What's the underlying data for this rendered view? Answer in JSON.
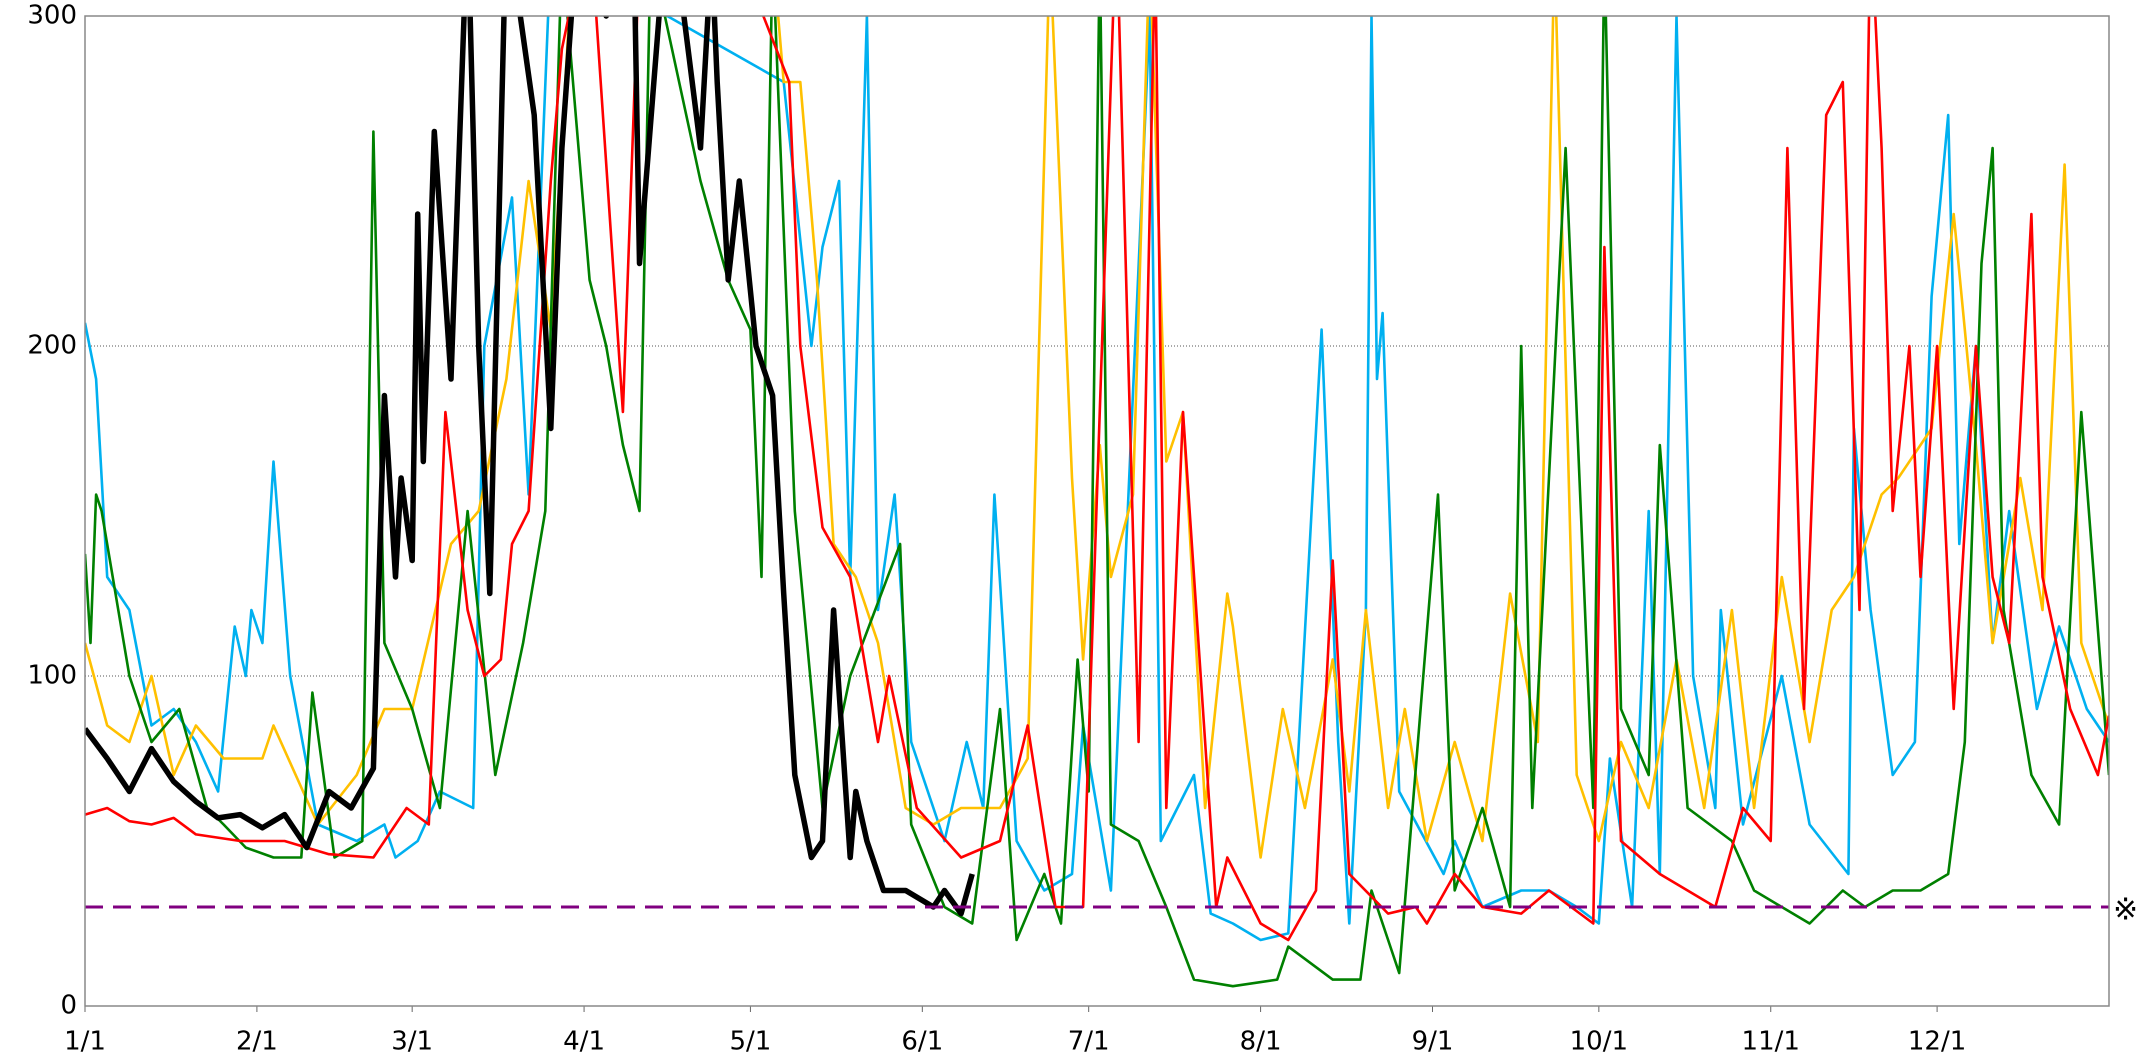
{
  "chart_data": {
    "type": "line",
    "xlim": [
      0,
      365
    ],
    "ylim": [
      0,
      300
    ],
    "xticks": [
      {
        "value": 0,
        "label": "1/1"
      },
      {
        "value": 31,
        "label": "2/1"
      },
      {
        "value": 59,
        "label": "3/1"
      },
      {
        "value": 90,
        "label": "4/1"
      },
      {
        "value": 120,
        "label": "5/1"
      },
      {
        "value": 151,
        "label": "6/1"
      },
      {
        "value": 181,
        "label": "7/1"
      },
      {
        "value": 212,
        "label": "8/1"
      },
      {
        "value": 243,
        "label": "9/1"
      },
      {
        "value": 273,
        "label": "10/1"
      },
      {
        "value": 304,
        "label": "11/1"
      },
      {
        "value": 334,
        "label": "12/1"
      }
    ],
    "yticks": [
      0,
      100,
      200,
      300
    ],
    "grid": true,
    "reference_line": {
      "value": 30,
      "label": "※",
      "color": "#800080"
    },
    "series": [
      {
        "color": "#00b0f0",
        "x": [
          0,
          2,
          4,
          8,
          12,
          16,
          20,
          24,
          27,
          29,
          30,
          32,
          34,
          37,
          42,
          49,
          54,
          56,
          60,
          64,
          70,
          72,
          77,
          80,
          84,
          126,
          131,
          133,
          136,
          138,
          141,
          143,
          146,
          149,
          155,
          159,
          162,
          164,
          168,
          173,
          178,
          180,
          185,
          192,
          194,
          200,
          203,
          207,
          212,
          217,
          223,
          226,
          228,
          231,
          232,
          233,
          234,
          237,
          245,
          247,
          252,
          259,
          264,
          269,
          273,
          275,
          279,
          282,
          284,
          287,
          290,
          294,
          295,
          299,
          306,
          311,
          318,
          319,
          322,
          326,
          330,
          333,
          336,
          338,
          341,
          344,
          347,
          352,
          356,
          361,
          365
        ],
        "values": [
          207,
          190,
          130,
          120,
          85,
          90,
          80,
          65,
          115,
          100,
          120,
          110,
          165,
          100,
          55,
          50,
          55,
          45,
          50,
          65,
          60,
          200,
          245,
          155,
          320,
          280,
          200,
          230,
          250,
          130,
          300,
          120,
          155,
          80,
          50,
          80,
          60,
          155,
          50,
          35,
          40,
          85,
          35,
          300,
          50,
          70,
          28,
          25,
          20,
          22,
          205,
          80,
          25,
          120,
          300,
          190,
          210,
          65,
          40,
          50,
          30,
          35,
          35,
          30,
          25,
          75,
          30,
          150,
          40,
          300,
          100,
          60,
          120,
          55,
          100,
          55,
          40,
          175,
          120,
          70,
          80,
          215,
          270,
          140,
          200,
          110,
          150,
          90,
          115,
          90,
          80
        ]
      },
      {
        "color": "#ffc000",
        "x": [
          0,
          4,
          8,
          12,
          16,
          20,
          25,
          32,
          34,
          42,
          49,
          54,
          59,
          66,
          71,
          76,
          80,
          84,
          88,
          124,
          126,
          129,
          132,
          135,
          139,
          143,
          148,
          153,
          158,
          165,
          170,
          174,
          178,
          180,
          183,
          185,
          189,
          192,
          195,
          198,
          202,
          206,
          207,
          212,
          216,
          220,
          225,
          228,
          231,
          235,
          238,
          242,
          247,
          252,
          257,
          262,
          265,
          269,
          273,
          277,
          282,
          287,
          292,
          297,
          301,
          306,
          311,
          315,
          319,
          324,
          327,
          333,
          337,
          341,
          344,
          349,
          353,
          357,
          360,
          365
        ],
        "values": [
          110,
          85,
          80,
          100,
          70,
          85,
          75,
          75,
          85,
          55,
          70,
          90,
          90,
          140,
          150,
          190,
          250,
          205,
          320,
          320,
          280,
          280,
          220,
          140,
          130,
          110,
          60,
          55,
          60,
          60,
          75,
          320,
          160,
          105,
          170,
          130,
          155,
          320,
          165,
          180,
          60,
          125,
          115,
          45,
          90,
          60,
          105,
          65,
          120,
          60,
          90,
          50,
          80,
          50,
          125,
          80,
          320,
          70,
          50,
          80,
          60,
          105,
          60,
          120,
          60,
          130,
          80,
          120,
          130,
          155,
          160,
          175,
          240,
          170,
          110,
          160,
          120,
          255,
          110,
          85
        ]
      },
      {
        "color": "#008000",
        "x": [
          0,
          1,
          2,
          3,
          8,
          12,
          17,
          22,
          25,
          29,
          34,
          39,
          41,
          45,
          50,
          52,
          54,
          59,
          64,
          69,
          74,
          79,
          83,
          86,
          91,
          94,
          97,
          100,
          102,
          111,
          116,
          120,
          122,
          124,
          128,
          133,
          138,
          147,
          149,
          155,
          160,
          165,
          168,
          173,
          176,
          179,
          181,
          183,
          185,
          190,
          195,
          200,
          207,
          215,
          217,
          225,
          230,
          232,
          237,
          244,
          247,
          252,
          257,
          259,
          261,
          267,
          272,
          274,
          277,
          282,
          284,
          289,
          297,
          301,
          306,
          311,
          317,
          321,
          326,
          331,
          336,
          339,
          342,
          344,
          346,
          351,
          356,
          360,
          365
        ],
        "values": [
          137,
          110,
          155,
          150,
          100,
          80,
          90,
          60,
          55,
          48,
          45,
          45,
          95,
          45,
          50,
          265,
          110,
          90,
          60,
          150,
          70,
          110,
          150,
          320,
          220,
          200,
          170,
          150,
          320,
          250,
          220,
          205,
          130,
          320,
          150,
          60,
          100,
          140,
          55,
          30,
          25,
          90,
          20,
          40,
          25,
          105,
          65,
          320,
          55,
          50,
          30,
          8,
          6,
          8,
          18,
          8,
          8,
          35,
          10,
          155,
          35,
          60,
          30,
          200,
          60,
          260,
          60,
          320,
          90,
          70,
          170,
          60,
          50,
          35,
          30,
          25,
          35,
          30,
          35,
          35,
          40,
          80,
          225,
          260,
          120,
          70,
          55,
          180,
          70
        ]
      },
      {
        "color": "#ff0000",
        "x": [
          0,
          4,
          8,
          12,
          16,
          20,
          28,
          36,
          44,
          52,
          58,
          62,
          65,
          69,
          72,
          75,
          77,
          80,
          84,
          86,
          91,
          97,
          100,
          120,
          127,
          129,
          133,
          138,
          143,
          145,
          150,
          158,
          165,
          170,
          175,
          180,
          186,
          190,
          193,
          195,
          198,
          204,
          206,
          212,
          217,
          222,
          225,
          228,
          235,
          240,
          242,
          247,
          252,
          259,
          264,
          272,
          274,
          277,
          284,
          289,
          294,
          299,
          304,
          307,
          310,
          314,
          317,
          320,
          322,
          324,
          326,
          329,
          331,
          334,
          337,
          341,
          344,
          347,
          351,
          353,
          358,
          363,
          365
        ],
        "values": [
          58,
          60,
          56,
          55,
          57,
          52,
          50,
          50,
          46,
          45,
          60,
          55,
          180,
          120,
          100,
          105,
          140,
          150,
          250,
          290,
          330,
          180,
          320,
          310,
          280,
          200,
          145,
          130,
          80,
          100,
          60,
          45,
          50,
          85,
          30,
          30,
          330,
          80,
          320,
          60,
          180,
          30,
          45,
          25,
          20,
          35,
          135,
          40,
          28,
          30,
          25,
          40,
          30,
          28,
          35,
          25,
          230,
          50,
          40,
          35,
          30,
          60,
          50,
          260,
          90,
          270,
          280,
          120,
          330,
          260,
          150,
          200,
          130,
          200,
          90,
          200,
          130,
          110,
          240,
          130,
          90,
          70,
          88
        ]
      },
      {
        "color": "#000000",
        "bold": true,
        "x": [
          0,
          4,
          8,
          12,
          16,
          20,
          24,
          28,
          32,
          36,
          40,
          44,
          48,
          52,
          54,
          56,
          57,
          59,
          60,
          61,
          63,
          66,
          69,
          71,
          73,
          76,
          81,
          84,
          86,
          89,
          94,
          99,
          100,
          104,
          108,
          111,
          113,
          114,
          116,
          118,
          121,
          124,
          126,
          128,
          131,
          133,
          135,
          138,
          139,
          141,
          144,
          148,
          153,
          155,
          158,
          160
        ],
        "values": [
          84,
          75,
          65,
          78,
          68,
          62,
          57,
          58,
          54,
          58,
          48,
          65,
          60,
          72,
          185,
          130,
          160,
          135,
          240,
          165,
          265,
          190,
          330,
          200,
          125,
          330,
          270,
          175,
          260,
          330,
          300,
          320,
          225,
          310,
          300,
          260,
          320,
          280,
          220,
          250,
          200,
          185,
          125,
          70,
          45,
          50,
          120,
          45,
          65,
          50,
          35,
          35,
          30,
          35,
          28,
          40
        ]
      }
    ]
  }
}
